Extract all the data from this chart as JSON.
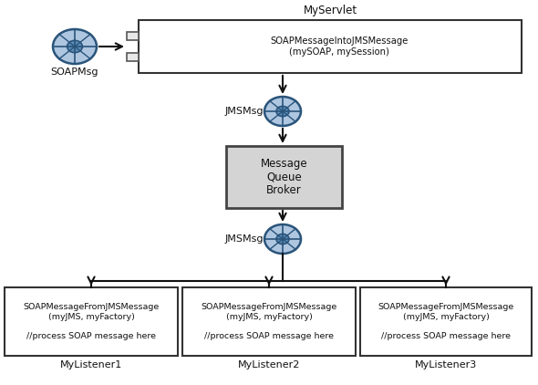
{
  "bg_color": "#ffffff",
  "title_myservlet": "MyServlet",
  "soap_msg_label": "SOAPMsg",
  "jms_msg_label1": "JMSMsg",
  "jms_msg_label2": "JMSMsg",
  "broker_label": "Message\nQueue\nBroker",
  "servlet_box_text": "SOAPMessageIntoJMSMessage\n(mySOAP, mySession)",
  "listener_text": "SOAPMessageFromJMSMessage\n(myJMS, myFactory)\n\n//process SOAP message here",
  "listener_labels": [
    "MyListener1",
    "MyListener2",
    "MyListener3"
  ],
  "ellipse_outer_color": "#aec6e0",
  "ellipse_inner_color": "#5b8db8",
  "ellipse_mid_color": "#8ab0d0",
  "ellipse_edge_color": "#2a547a",
  "broker_fill": "#d4d4d4",
  "broker_edge": "#444444",
  "box_fill": "#ffffff",
  "box_edge": "#333333",
  "arrow_color": "#111111",
  "text_color": "#111111",
  "font_size_label": 8.0,
  "font_size_box": 7.2,
  "font_size_broker": 8.5,
  "font_size_title": 8.5,
  "font_size_listener": 6.8
}
